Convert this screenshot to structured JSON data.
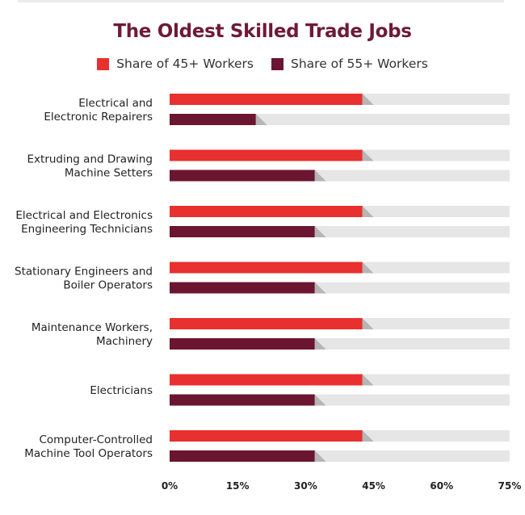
{
  "chart_data": {
    "type": "bar",
    "orientation": "horizontal",
    "title": "The Oldest Skilled Trade Jobs",
    "categories": [
      [
        "Electrical and",
        "Electronic Repairers"
      ],
      [
        "Extruding and Drawing",
        "Machine Setters"
      ],
      [
        "Electrical and Electronics",
        "Engineering Technicians"
      ],
      [
        "Stationary Engineers and",
        "Boiler Operators"
      ],
      [
        "Maintenance Workers,",
        "Machinery"
      ],
      [
        "Electricians"
      ],
      [
        "Computer-Controlled",
        "Machine Tool Operators"
      ]
    ],
    "series": [
      {
        "name": "Share of 45+ Workers",
        "color": "#e8302e",
        "values": [
          42.5,
          42.5,
          42.5,
          42.5,
          42.5,
          42.5,
          42.5
        ]
      },
      {
        "name": "Share of 55+ Workers",
        "color": "#6b1530",
        "values": [
          19,
          32,
          32,
          32,
          32,
          32,
          32
        ]
      }
    ],
    "x_ticks": [
      "0%",
      "15%",
      "30%",
      "45%",
      "60%",
      "75%"
    ],
    "xlim": [
      0,
      75
    ],
    "track_color": "#e6e6e6",
    "grid": false,
    "legend_position": "top"
  }
}
